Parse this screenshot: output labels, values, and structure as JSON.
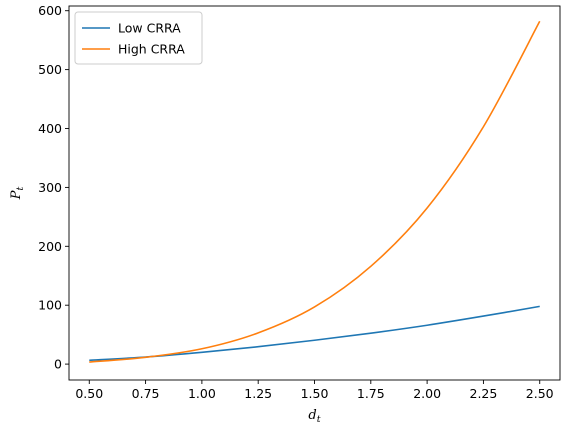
{
  "chart_data": {
    "type": "line",
    "title": "",
    "xlabel": {
      "main": "d",
      "sub": "t"
    },
    "ylabel": {
      "main": "P",
      "sub": "t"
    },
    "xlim": [
      0.41,
      2.59
    ],
    "ylim": [
      -27,
      608
    ],
    "grid": false,
    "legend_position": "top-left",
    "x_ticks": [
      0.5,
      0.75,
      1.0,
      1.25,
      1.5,
      1.75,
      2.0,
      2.25,
      2.5
    ],
    "x_tick_labels": [
      "0.50",
      "0.75",
      "1.00",
      "1.25",
      "1.50",
      "1.75",
      "2.00",
      "2.25",
      "2.50"
    ],
    "y_ticks": [
      0,
      100,
      200,
      300,
      400,
      500,
      600
    ],
    "y_tick_labels": [
      "0",
      "100",
      "200",
      "300",
      "400",
      "500",
      "600"
    ],
    "series": [
      {
        "name": "Low CRRA",
        "color": "#1f77b4",
        "x": [
          0.5,
          0.75,
          1.0,
          1.25,
          1.5,
          1.75,
          2.0,
          2.25,
          2.5
        ],
        "values": [
          6.5,
          12.0,
          20.0,
          29.5,
          40.5,
          52.5,
          66.0,
          81.5,
          98.0
        ]
      },
      {
        "name": "High CRRA",
        "color": "#ff7f0e",
        "x": [
          0.5,
          0.75,
          1.0,
          1.25,
          1.5,
          1.75,
          2.0,
          2.25,
          2.5
        ],
        "values": [
          3.5,
          11.5,
          26.0,
          53.0,
          97.0,
          166.0,
          265.0,
          403.0,
          582.0
        ]
      }
    ]
  }
}
